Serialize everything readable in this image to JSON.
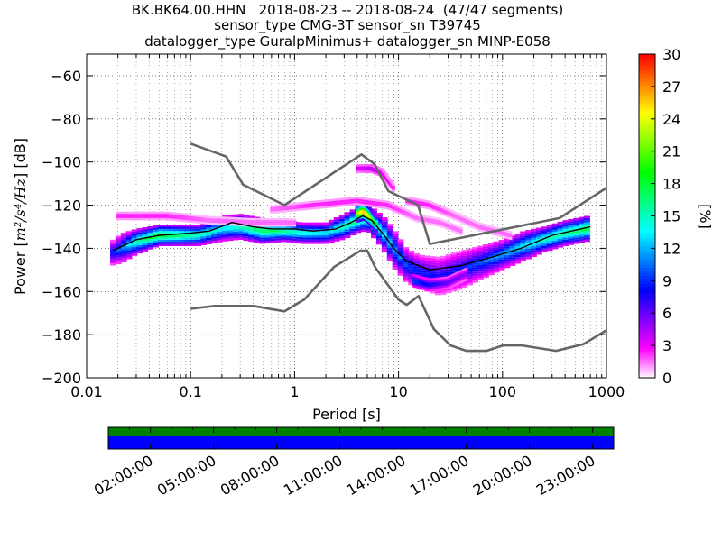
{
  "chart_data": {
    "type": "heatmap",
    "title_lines": [
      "BK.BK64.00.HHN   2018-08-23 -- 2018-08-24  (47/47 segments)",
      "sensor_type CMG-3T sensor_sn T39745",
      "datalogger_type GuralpMinimus+ datalogger_sn MINP-E058"
    ],
    "xlabel": "Period [s]",
    "ylabel_prefix": "Power [",
    "ylabel_unit": "m²/s⁴/Hz",
    "ylabel_suffix": "] [dB]",
    "xscale": "log",
    "xlim": [
      0.01,
      1000
    ],
    "ylim": [
      -200,
      -50
    ],
    "xticks": [
      {
        "value": 0.01,
        "label": "0.01"
      },
      {
        "value": 0.1,
        "label": "0.1"
      },
      {
        "value": 1,
        "label": "1"
      },
      {
        "value": 10,
        "label": "10"
      },
      {
        "value": 100,
        "label": "100"
      },
      {
        "value": 1000,
        "label": "1000"
      }
    ],
    "yticks": [
      {
        "value": -60,
        "label": "−60"
      },
      {
        "value": -80,
        "label": "−80"
      },
      {
        "value": -100,
        "label": "−100"
      },
      {
        "value": -120,
        "label": "−120"
      },
      {
        "value": -140,
        "label": "−140"
      },
      {
        "value": -160,
        "label": "−160"
      },
      {
        "value": -180,
        "label": "−180"
      },
      {
        "value": -200,
        "label": "−200"
      }
    ],
    "grid": "dotted",
    "colorbar": {
      "label": "[%]",
      "range": [
        0,
        30
      ],
      "ticks": [
        {
          "value": 0,
          "label": "0"
        },
        {
          "value": 3,
          "label": "3"
        },
        {
          "value": 6,
          "label": "6"
        },
        {
          "value": 9,
          "label": "9"
        },
        {
          "value": 12,
          "label": "12"
        },
        {
          "value": 15,
          "label": "15"
        },
        {
          "value": 18,
          "label": "18"
        },
        {
          "value": 21,
          "label": "21"
        },
        {
          "value": 24,
          "label": "24"
        },
        {
          "value": 27,
          "label": "27"
        },
        {
          "value": 30,
          "label": "30"
        }
      ],
      "colors": [
        "#ffffff",
        "#ff00ff",
        "#8000ff",
        "#0000ff",
        "#0080ff",
        "#00ffff",
        "#00ff80",
        "#00ff00",
        "#80ff00",
        "#ffff00",
        "#ff8000",
        "#ff0000"
      ]
    },
    "nhnm": {
      "name": "NHNM",
      "color": "#666666",
      "points": [
        [
          0.1,
          -91.5
        ],
        [
          0.22,
          -97.5
        ],
        [
          0.32,
          -110.5
        ],
        [
          0.8,
          -120
        ],
        [
          4.4,
          -96.5
        ],
        [
          5.9,
          -101
        ],
        [
          8,
          -113.5
        ],
        [
          15.4,
          -120
        ],
        [
          20,
          -138
        ],
        [
          354,
          -126
        ],
        [
          1000,
          -112
        ]
      ]
    },
    "nlnm": {
      "name": "NLNM",
      "color": "#666666",
      "points": [
        [
          0.1,
          -168
        ],
        [
          0.17,
          -166.7
        ],
        [
          0.4,
          -166.7
        ],
        [
          0.8,
          -169.2
        ],
        [
          1.24,
          -163.7
        ],
        [
          2.4,
          -148.6
        ],
        [
          4.3,
          -141.1
        ],
        [
          5,
          -141.1
        ],
        [
          6,
          -149
        ],
        [
          10,
          -163.8
        ],
        [
          12,
          -166.2
        ],
        [
          15.6,
          -162.1
        ],
        [
          21.9,
          -177.5
        ],
        [
          31.6,
          -185
        ],
        [
          45,
          -187.5
        ],
        [
          70,
          -187.5
        ],
        [
          101,
          -185
        ],
        [
          154,
          -185
        ],
        [
          328,
          -187.5
        ],
        [
          600,
          -184.4
        ],
        [
          1000,
          -178
        ]
      ]
    },
    "mode_curve": {
      "name": "mode",
      "color": "#000000",
      "points": [
        [
          0.018,
          -141
        ],
        [
          0.03,
          -136
        ],
        [
          0.05,
          -134
        ],
        [
          0.1,
          -133
        ],
        [
          0.15,
          -132
        ],
        [
          0.25,
          -128
        ],
        [
          0.4,
          -130
        ],
        [
          0.6,
          -131
        ],
        [
          1,
          -131
        ],
        [
          1.5,
          -132
        ],
        [
          2.5,
          -131
        ],
        [
          3.5,
          -128
        ],
        [
          4.5,
          -125
        ],
        [
          5.5,
          -127
        ],
        [
          7,
          -133
        ],
        [
          9,
          -140
        ],
        [
          12,
          -146
        ],
        [
          20,
          -150
        ],
        [
          40,
          -148
        ],
        [
          80,
          -144
        ],
        [
          150,
          -140
        ],
        [
          300,
          -134
        ],
        [
          700,
          -130
        ]
      ]
    },
    "density_bands": [
      {
        "name": "base-band",
        "points": [
          [
            0.018,
            -142,
            6
          ],
          [
            0.022,
            -140,
            7
          ],
          [
            0.03,
            -137,
            6
          ],
          [
            0.05,
            -134,
            5
          ],
          [
            0.08,
            -134,
            5
          ],
          [
            0.12,
            -134,
            5
          ],
          [
            0.2,
            -131,
            6
          ],
          [
            0.3,
            -130,
            6
          ],
          [
            0.5,
            -132,
            6
          ],
          [
            0.8,
            -132,
            5
          ],
          [
            1.2,
            -133,
            5
          ],
          [
            2,
            -133,
            5
          ],
          [
            3,
            -130,
            6
          ],
          [
            4,
            -127,
            6
          ],
          [
            5,
            -126,
            6
          ],
          [
            6,
            -129,
            7
          ],
          [
            7.5,
            -134,
            8
          ],
          [
            9,
            -140,
            9
          ],
          [
            12,
            -148,
            8
          ],
          [
            16,
            -151,
            8
          ],
          [
            25,
            -153,
            9
          ],
          [
            40,
            -150,
            9
          ],
          [
            60,
            -147,
            8
          ],
          [
            100,
            -143,
            7
          ],
          [
            160,
            -139,
            7
          ],
          [
            250,
            -136,
            6
          ],
          [
            400,
            -133,
            6
          ],
          [
            650,
            -131,
            6
          ]
        ],
        "pct": [
          9,
          11,
          16,
          20,
          18,
          16,
          14,
          16,
          18,
          17,
          15,
          14,
          16,
          18,
          18,
          15,
          14,
          12,
          10,
          9,
          8,
          9,
          10,
          12,
          14,
          16,
          17,
          19
        ]
      },
      {
        "name": "peak-band",
        "points": [
          [
            4,
            -124,
            4
          ],
          [
            4.7,
            -123,
            4
          ],
          [
            5.3,
            -125,
            4
          ],
          [
            6.2,
            -129,
            4
          ]
        ],
        "pct": [
          24,
          29,
          26,
          20
        ]
      },
      {
        "name": "low-band",
        "points": [
          [
            14,
            -155,
            3
          ],
          [
            20,
            -157,
            3
          ],
          [
            30,
            -156,
            3
          ],
          [
            45,
            -152,
            3
          ]
        ],
        "pct": [
          11,
          9,
          7,
          6
        ]
      },
      {
        "name": "upper-band",
        "points": [
          [
            4,
            -103,
            2
          ],
          [
            5.5,
            -103,
            2
          ],
          [
            7,
            -105,
            2
          ],
          [
            9,
            -112,
            2
          ]
        ],
        "pct": [
          4,
          5,
          4,
          3
        ]
      },
      {
        "name": "wide-band",
        "points": [
          [
            0.6,
            -122,
            2
          ],
          [
            1.5,
            -120,
            2
          ],
          [
            4,
            -118,
            2
          ],
          [
            8,
            -120,
            2
          ],
          [
            15,
            -126,
            2
          ],
          [
            25,
            -128,
            2
          ],
          [
            40,
            -132,
            2
          ]
        ],
        "pct": [
          2,
          3,
          3,
          3,
          2,
          2,
          2
        ]
      },
      {
        "name": "flat-band",
        "points": [
          [
            0.02,
            -125,
            2
          ],
          [
            0.06,
            -125,
            2
          ],
          [
            0.15,
            -127,
            2
          ],
          [
            0.4,
            -128,
            2
          ],
          [
            1,
            -128,
            2
          ]
        ],
        "pct": [
          3,
          3,
          2,
          2,
          2
        ]
      },
      {
        "name": "high-band",
        "points": [
          [
            12,
            -118,
            2
          ],
          [
            20,
            -120,
            2
          ],
          [
            35,
            -125,
            2
          ],
          [
            60,
            -130,
            2
          ],
          [
            120,
            -134,
            2
          ]
        ],
        "pct": [
          3,
          3,
          2,
          2,
          2
        ]
      }
    ]
  },
  "time_axis": {
    "labels": [
      "02:00:00",
      "05:00:00",
      "08:00:00",
      "11:00:00",
      "14:00:00",
      "17:00:00",
      "20:00:00",
      "23:00:00"
    ],
    "start_hour": 0,
    "end_hour": 24,
    "upper_color": "#008000",
    "lower_color": "#0000ff"
  }
}
